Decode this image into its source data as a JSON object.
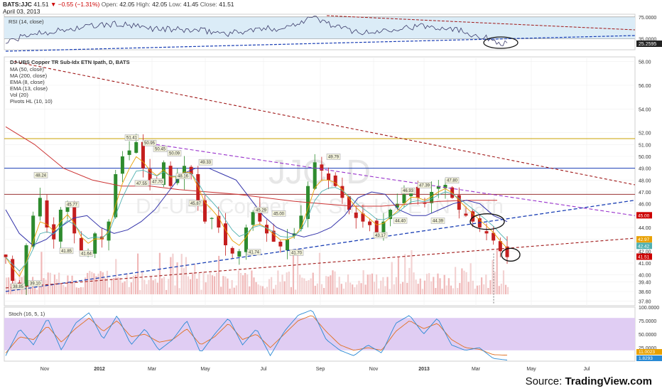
{
  "header": {
    "symbol": "BATS:JJC",
    "last": "41.51",
    "change": "▼ −0.55 (−1.31%)",
    "open_label": "Open:",
    "open": "42.05",
    "high_label": "High:",
    "high": "42.05",
    "low_label": "Low:",
    "low": "41.45",
    "close_label": "Close:",
    "close": "41.51",
    "date": "April 03, 2013"
  },
  "source": {
    "prefix": "Source: ",
    "brand": "TradingView.com"
  },
  "colors": {
    "up": "#2e8b2e",
    "down": "#c41e1e",
    "ma50": "#3333aa",
    "ma200": "#cc3333",
    "ema8": "#e8a000",
    "ema13": "#4fb0b0",
    "trend_blue": "#1a3fb5",
    "trend_red": "#a01818",
    "trend_purple": "#9933cc",
    "stoch_band": "#e0cdf3",
    "rsi_band": "#dbecf7",
    "volume": "#f0b8b8"
  },
  "chart_data": [
    {
      "type": "line",
      "title": "RSI (14, close)",
      "y_ticks": [
        "75.0000",
        "35.0000"
      ],
      "last_value": "25.2595",
      "ylim": [
        15,
        80
      ],
      "bands": [
        35,
        75
      ],
      "x": [
        "2011-10",
        "2011-11",
        "2011-12",
        "2012-01",
        "2012-02",
        "2012-03",
        "2012-04",
        "2012-05",
        "2012-06",
        "2012-07",
        "2012-08",
        "2012-09",
        "2012-10",
        "2012-11",
        "2012-12",
        "2013-01",
        "2013-02",
        "2013-03",
        "2013-04"
      ],
      "values": [
        28,
        45,
        50,
        58,
        62,
        55,
        52,
        50,
        45,
        52,
        55,
        75,
        55,
        45,
        55,
        58,
        55,
        40,
        25
      ]
    },
    {
      "type": "candlestick",
      "title": "DJ-UBS Copper TR Sub-Idx ETN Ipath, D, BATS",
      "watermark": "JJC, D",
      "watermark_sub": "DJ-UBS Copper TR Sub-Idx ETN Ipath",
      "legend": [
        "MA (50, close)",
        "MA (200, close)",
        "EMA (8, close)",
        "EMA (13, close)",
        "Vol (20)",
        "Pivots HL (10, 10)"
      ],
      "y_ticks": [
        "58.00",
        "56.00",
        "54.00",
        "52.00",
        "51.00",
        "50.00",
        "49.00",
        "48.00",
        "47.00",
        "46.00",
        "45.00",
        "44.00",
        "43.00",
        "42.00",
        "41.00",
        "40.00",
        "39.40",
        "38.60",
        "37.80"
      ],
      "ylim": [
        37.4,
        58.4
      ],
      "price_tags": [
        {
          "label": "45.00",
          "value": 45.0,
          "color": "#cc0000"
        },
        {
          "label": "42.97",
          "value": 42.97,
          "color": "#e8a000"
        },
        {
          "label": "42.42",
          "value": 42.42,
          "color": "#4fb0b0"
        },
        {
          "label": "41.51",
          "value": 41.51,
          "color": "#cc0000"
        }
      ],
      "pivot_labels": [
        "48.24",
        "45.77",
        "41.85",
        "41.64",
        "51.41",
        "50.95",
        "50.45",
        "50.09",
        "47.55",
        "47.70",
        "48.16",
        "49.33",
        "45.87",
        "45.29",
        "45.00",
        "41.74",
        "41.70",
        "49.79",
        "44.40",
        "43.17",
        "47.39",
        "46.93",
        "47.80",
        "44.39",
        "38.85",
        "39.10"
      ],
      "horizontal_levels": [
        51.5,
        49.0,
        46.8
      ],
      "x_ticks": [
        "Nov",
        "2012",
        "Mar",
        "May",
        "Jul",
        "Sep",
        "Nov",
        "2013",
        "Mar",
        "May",
        "Jul"
      ],
      "close": [
        41.5,
        39.5,
        39.0,
        42.5,
        45.0,
        46.5,
        44.0,
        43.0,
        45.5,
        45.8,
        43.5,
        41.8,
        42.0,
        43.5,
        43.0,
        44.5,
        48.5,
        50.0,
        50.5,
        51.2,
        49.0,
        48.0,
        47.8,
        49.5,
        47.5,
        48.3,
        49.2,
        48.5,
        46.0,
        44.5,
        44.8,
        44.0,
        42.5,
        41.8,
        42.0,
        44.0,
        45.3,
        44.5,
        43.5,
        42.8,
        42.4,
        43.0,
        43.5,
        45.0,
        47.5,
        49.5,
        48.8,
        48.0,
        47.5,
        46.5,
        45.5,
        44.8,
        44.5,
        44.2,
        43.6,
        44.5,
        45.5,
        46.0,
        46.8,
        47.2,
        46.5,
        46.0,
        47.0,
        47.5,
        47.6,
        46.5,
        45.5,
        45.0,
        44.5,
        44.0,
        43.5,
        42.9,
        42.0,
        41.5
      ],
      "series": [
        {
          "name": "MA (50, close)",
          "values": [
            45.5,
            43.5,
            42.5,
            43.0,
            44.0,
            44.8,
            45.0,
            44.0,
            43.5,
            43.8,
            44.5,
            45.5,
            47.0,
            48.5,
            49.0,
            49.0,
            48.5,
            48.0,
            46.5,
            45.0,
            44.0,
            43.5,
            43.2,
            43.5,
            44.0,
            45.0,
            46.5,
            47.0,
            46.8,
            45.5,
            45.0,
            45.0,
            45.5,
            46.0,
            46.3,
            46.0,
            45.0,
            44.5
          ]
        },
        {
          "name": "MA (200, close)",
          "values": [
            52.5,
            51.0,
            49.0,
            48.0,
            47.5,
            47.5,
            47.2,
            47.0,
            46.8,
            46.5,
            46.2,
            46.0,
            45.8,
            45.8,
            46.0,
            46.2,
            46.3,
            46.3
          ]
        }
      ],
      "volume_ylim": [
        0,
        100
      ]
    },
    {
      "type": "line",
      "title": "Stoch (16, 5, 1)",
      "y_ticks": [
        "100.0000",
        "75.0000",
        "50.0000",
        "25.0000"
      ],
      "last_values": [
        "11.0023",
        "1.8293"
      ],
      "ylim": [
        0,
        100
      ],
      "bands": [
        20,
        80
      ],
      "series": [
        {
          "name": "%K",
          "values": [
            10,
            60,
            30,
            80,
            20,
            70,
            90,
            40,
            85,
            30,
            60,
            20,
            40,
            75,
            15,
            50,
            80,
            30,
            60,
            10,
            55,
            85,
            95,
            40,
            20,
            10,
            30,
            15,
            70,
            85,
            50,
            80,
            30,
            20,
            25,
            5,
            2
          ]
        },
        {
          "name": "%D",
          "values": [
            15,
            45,
            40,
            65,
            35,
            60,
            80,
            55,
            75,
            45,
            50,
            35,
            40,
            60,
            30,
            45,
            70,
            40,
            50,
            25,
            50,
            75,
            85,
            55,
            30,
            20,
            25,
            20,
            55,
            75,
            60,
            70,
            40,
            25,
            22,
            12,
            11
          ]
        }
      ]
    }
  ]
}
